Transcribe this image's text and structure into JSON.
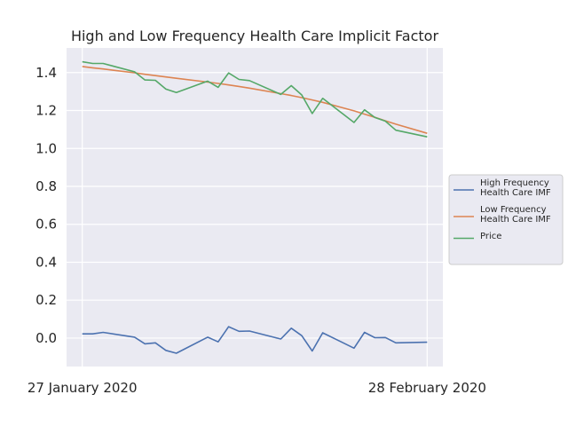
{
  "chart_data": {
    "type": "line",
    "title": "High and Low Frequency Health Care Implicit Factor",
    "xlabel": "",
    "ylabel": "",
    "x_tick_labels": [
      "27 January 2020",
      "28 February 2020"
    ],
    "y_tick_labels": [
      "0.0",
      "0.2",
      "0.4",
      "0.6",
      "0.8",
      "1.0",
      "1.2",
      "1.4"
    ],
    "y_ticks": [
      0.0,
      0.2,
      0.4,
      0.6,
      0.8,
      1.0,
      1.2,
      1.4
    ],
    "ylim": [
      -0.15,
      1.53
    ],
    "x": [
      0,
      1,
      2,
      5,
      6,
      7,
      8,
      9,
      12,
      13,
      14,
      15,
      16,
      19,
      20,
      21,
      22,
      23,
      26,
      27,
      28,
      29,
      30,
      33
    ],
    "xlim": [
      -1.5,
      34.5
    ],
    "grid": true,
    "legend_position": "right",
    "series": [
      {
        "name": "High Frequency Health Care IMF",
        "legend_lines": [
          "High Frequency",
          "Health Care IMF"
        ],
        "color": "#4c72b0",
        "values": [
          0.022,
          0.022,
          0.03,
          0.005,
          -0.03,
          -0.025,
          -0.065,
          -0.08,
          0.005,
          -0.02,
          0.06,
          0.036,
          0.037,
          -0.005,
          0.052,
          0.013,
          -0.068,
          0.028,
          -0.053,
          0.03,
          0.002,
          0.003,
          -0.025,
          -0.022
        ]
      },
      {
        "name": "Low Frequency Health Care IMF",
        "legend_lines": [
          "Low Frequency",
          "Health Care IMF"
        ],
        "color": "#dd8452",
        "values": [
          1.432,
          1.425,
          1.419,
          1.399,
          1.391,
          1.384,
          1.377,
          1.37,
          1.35,
          1.343,
          1.335,
          1.327,
          1.318,
          1.289,
          1.279,
          1.268,
          1.256,
          1.243,
          1.198,
          1.181,
          1.164,
          1.146,
          1.128,
          1.08
        ]
      },
      {
        "name": "Price",
        "legend_lines": [
          "Price"
        ],
        "color": "#55a868",
        "values": [
          1.457,
          1.448,
          1.448,
          1.404,
          1.361,
          1.359,
          1.313,
          1.295,
          1.355,
          1.322,
          1.398,
          1.364,
          1.358,
          1.285,
          1.331,
          1.282,
          1.184,
          1.264,
          1.137,
          1.204,
          1.163,
          1.144,
          1.096,
          1.061
        ]
      }
    ]
  }
}
